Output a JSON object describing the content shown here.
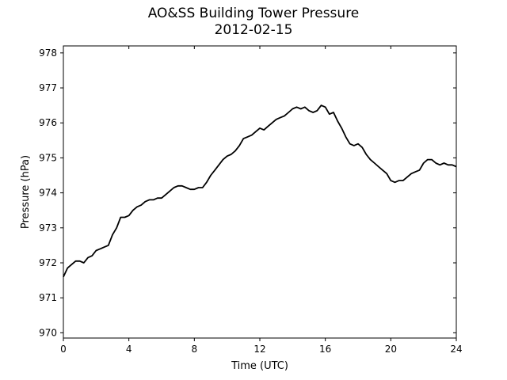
{
  "chart_data": {
    "type": "line",
    "title": "AO&SS Building Tower Pressure",
    "subtitle": "2012-02-15",
    "xlabel": "Time (UTC)",
    "ylabel": "Pressure (hPa)",
    "xlim": [
      0,
      24
    ],
    "ylim": [
      969.85,
      978.2
    ],
    "xticks": [
      0,
      4,
      8,
      12,
      16,
      20,
      24
    ],
    "yticks": [
      970,
      971,
      972,
      973,
      974,
      975,
      976,
      977,
      978
    ],
    "grid": false,
    "series": [
      {
        "color": "#000000",
        "x": [
          0,
          0.25,
          0.5,
          0.75,
          1.0,
          1.25,
          1.5,
          1.75,
          2.0,
          2.25,
          2.5,
          2.75,
          3.0,
          3.25,
          3.5,
          3.75,
          4.0,
          4.25,
          4.5,
          4.75,
          5.0,
          5.25,
          5.5,
          5.75,
          6.0,
          6.25,
          6.5,
          6.75,
          7.0,
          7.25,
          7.5,
          7.75,
          8.0,
          8.25,
          8.5,
          8.75,
          9.0,
          9.25,
          9.5,
          9.75,
          10.0,
          10.25,
          10.5,
          10.75,
          11.0,
          11.25,
          11.5,
          11.75,
          12.0,
          12.25,
          12.5,
          12.75,
          13.0,
          13.25,
          13.5,
          13.75,
          14.0,
          14.25,
          14.5,
          14.75,
          15.0,
          15.25,
          15.5,
          15.75,
          16.0,
          16.25,
          16.5,
          16.75,
          17.0,
          17.25,
          17.5,
          17.75,
          18.0,
          18.25,
          18.5,
          18.75,
          19.0,
          19.25,
          19.5,
          19.75,
          20.0,
          20.25,
          20.5,
          20.75,
          21.0,
          21.25,
          21.5,
          21.75,
          22.0,
          22.25,
          22.5,
          22.75,
          23.0,
          23.25,
          23.5,
          23.75,
          24.0
        ],
        "y": [
          971.6,
          971.85,
          971.95,
          972.05,
          972.05,
          972.0,
          972.15,
          972.2,
          972.35,
          972.4,
          972.45,
          972.5,
          972.8,
          973.0,
          973.3,
          973.3,
          973.35,
          973.5,
          973.6,
          973.65,
          973.75,
          973.8,
          973.8,
          973.85,
          973.85,
          973.95,
          974.05,
          974.15,
          974.2,
          974.2,
          974.15,
          974.1,
          974.1,
          974.15,
          974.15,
          974.3,
          974.5,
          974.65,
          974.8,
          974.95,
          975.05,
          975.1,
          975.2,
          975.35,
          975.55,
          975.6,
          975.65,
          975.75,
          975.85,
          975.8,
          975.9,
          976.0,
          976.1,
          976.15,
          976.2,
          976.3,
          976.4,
          976.45,
          976.4,
          976.45,
          976.35,
          976.3,
          976.35,
          976.5,
          976.45,
          976.25,
          976.3,
          976.05,
          975.85,
          975.6,
          975.4,
          975.35,
          975.4,
          975.3,
          975.1,
          974.95,
          974.85,
          974.75,
          974.65,
          974.55,
          974.35,
          974.3,
          974.35,
          974.35,
          974.45,
          974.55,
          974.6,
          974.65,
          974.85,
          974.95,
          974.95,
          974.85,
          974.8,
          974.85,
          974.8,
          974.8,
          974.75
        ]
      }
    ]
  }
}
